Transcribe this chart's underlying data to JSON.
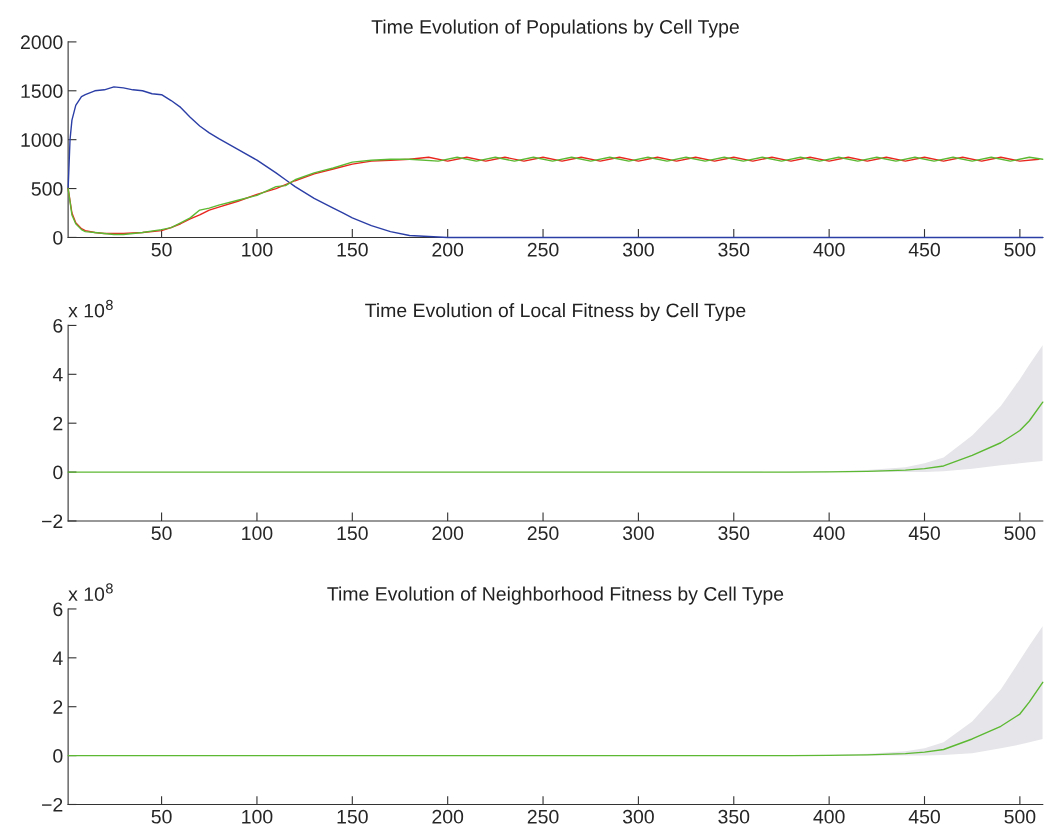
{
  "chart_data": [
    {
      "type": "line",
      "title": "Time Evolution of Populations by Cell Type",
      "xlim": [
        1,
        512
      ],
      "xticks": [
        50,
        100,
        150,
        200,
        250,
        300,
        350,
        400,
        450,
        500
      ],
      "ylim": [
        0,
        2000
      ],
      "yticks": [
        0,
        500,
        1000,
        1500,
        2000
      ],
      "grid": false,
      "line_style": "solid",
      "marker": "none",
      "series": [
        {
          "color": "#2b3ea6",
          "x": [
            1,
            2,
            3,
            5,
            8,
            10,
            15,
            20,
            25,
            30,
            35,
            40,
            45,
            50,
            55,
            60,
            65,
            70,
            75,
            80,
            90,
            100,
            110,
            115,
            120,
            130,
            140,
            145,
            150,
            160,
            170,
            180,
            190,
            200,
            250,
            300,
            400,
            512
          ],
          "values": [
            500,
            1000,
            1200,
            1350,
            1440,
            1460,
            1500,
            1510,
            1540,
            1530,
            1510,
            1500,
            1470,
            1460,
            1400,
            1330,
            1230,
            1140,
            1070,
            1010,
            900,
            790,
            660,
            590,
            520,
            400,
            300,
            250,
            200,
            120,
            60,
            20,
            10,
            0,
            0,
            0,
            0,
            0
          ]
        },
        {
          "color": "#e8261e",
          "x": [
            1,
            3,
            5,
            8,
            10,
            15,
            20,
            25,
            30,
            40,
            50,
            55,
            60,
            65,
            70,
            75,
            80,
            90,
            100,
            110,
            115,
            120,
            130,
            140,
            150,
            160,
            170,
            180,
            190,
            200,
            210,
            220,
            230,
            240,
            250,
            260,
            270,
            280,
            290,
            300,
            310,
            320,
            330,
            340,
            350,
            360,
            370,
            380,
            390,
            400,
            410,
            420,
            430,
            440,
            450,
            460,
            470,
            480,
            490,
            500,
            510
          ],
          "values": [
            500,
            250,
            150,
            90,
            70,
            50,
            40,
            40,
            40,
            50,
            70,
            100,
            140,
            190,
            230,
            280,
            310,
            370,
            440,
            500,
            540,
            580,
            650,
            700,
            750,
            780,
            790,
            800,
            820,
            780,
            820,
            780,
            820,
            780,
            820,
            780,
            820,
            780,
            820,
            780,
            820,
            780,
            820,
            780,
            820,
            780,
            820,
            780,
            820,
            780,
            820,
            780,
            820,
            780,
            820,
            780,
            820,
            780,
            820,
            780,
            800
          ]
        },
        {
          "color": "#5cb832",
          "x": [
            1,
            3,
            5,
            8,
            10,
            15,
            20,
            25,
            30,
            40,
            50,
            55,
            60,
            65,
            70,
            75,
            80,
            90,
            100,
            110,
            115,
            120,
            130,
            140,
            150,
            160,
            170,
            180,
            195,
            205,
            215,
            225,
            235,
            245,
            255,
            265,
            275,
            285,
            295,
            305,
            315,
            325,
            335,
            345,
            355,
            365,
            375,
            385,
            395,
            405,
            415,
            425,
            435,
            445,
            455,
            465,
            475,
            485,
            495,
            505,
            512
          ],
          "values": [
            500,
            230,
            140,
            80,
            60,
            50,
            40,
            30,
            30,
            50,
            80,
            100,
            150,
            200,
            280,
            300,
            330,
            380,
            430,
            520,
            530,
            590,
            660,
            710,
            770,
            790,
            800,
            800,
            780,
            820,
            780,
            820,
            780,
            820,
            780,
            820,
            780,
            820,
            780,
            820,
            780,
            820,
            780,
            820,
            780,
            820,
            780,
            820,
            780,
            820,
            780,
            820,
            780,
            820,
            780,
            820,
            780,
            820,
            780,
            820,
            800
          ]
        }
      ]
    },
    {
      "type": "line",
      "title": "Time Evolution of Local Fitness by Cell Type",
      "annotations": [
        "x 10$^{8}$"
      ],
      "xlim": [
        1,
        512
      ],
      "xticks": [
        50,
        100,
        150,
        200,
        250,
        300,
        350,
        400,
        450,
        500
      ],
      "ylim": [
        -2,
        6
      ],
      "yticks": [
        {
          "value": -2,
          "label": "−2"
        },
        0,
        2,
        4,
        6
      ],
      "grid": false,
      "line_style": "solid",
      "marker": "none",
      "series": [
        {
          "color": "#5cb832",
          "x": [
            1,
            100,
            200,
            300,
            380,
            400,
            420,
            440,
            450,
            460,
            475,
            490,
            500,
            505,
            512
          ],
          "values": [
            0,
            0,
            0,
            0,
            0,
            0.01,
            0.03,
            0.08,
            0.14,
            0.25,
            0.68,
            1.2,
            1.7,
            2.1,
            2.86
          ],
          "lower": [
            0,
            0,
            0,
            0,
            0,
            0,
            0,
            0,
            0,
            0.03,
            0.14,
            0.28,
            0.36,
            0.4,
            0.45
          ],
          "upper": [
            0,
            0,
            0,
            0,
            0.01,
            0.03,
            0.08,
            0.2,
            0.36,
            0.6,
            1.5,
            2.7,
            3.8,
            4.4,
            5.2
          ]
        }
      ]
    },
    {
      "type": "line",
      "title": "Time Evolution of Neighborhood Fitness by Cell Type",
      "annotations": [
        "x 10$^{8}$"
      ],
      "xlim": [
        1,
        512
      ],
      "xticks": [
        50,
        100,
        150,
        200,
        250,
        300,
        350,
        400,
        450,
        500
      ],
      "ylim": [
        -2,
        6
      ],
      "yticks": [
        {
          "value": -2,
          "label": "−2"
        },
        0,
        2,
        4,
        6
      ],
      "grid": false,
      "line_style": "solid",
      "marker": "none",
      "series": [
        {
          "color": "#5cb832",
          "x": [
            1,
            100,
            200,
            300,
            380,
            400,
            420,
            440,
            450,
            460,
            475,
            490,
            500,
            505,
            512
          ],
          "values": [
            0,
            0,
            0,
            0,
            0,
            0.01,
            0.03,
            0.08,
            0.14,
            0.25,
            0.68,
            1.2,
            1.7,
            2.2,
            3.0
          ],
          "lower": [
            0,
            0,
            0,
            0,
            0,
            0,
            0,
            0,
            0,
            0.02,
            0.1,
            0.3,
            0.45,
            0.55,
            0.68
          ],
          "upper": [
            0,
            0,
            0,
            0,
            0.01,
            0.03,
            0.08,
            0.18,
            0.3,
            0.55,
            1.4,
            2.7,
            3.9,
            4.5,
            5.3
          ]
        }
      ]
    }
  ]
}
